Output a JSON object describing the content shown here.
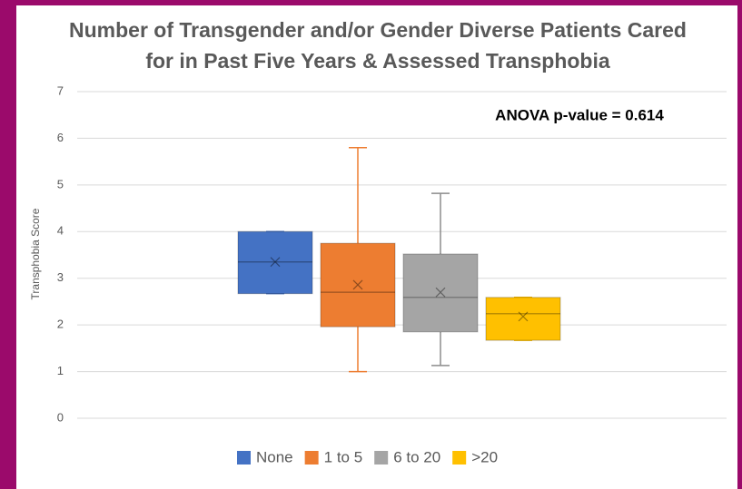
{
  "chart_data": {
    "type": "box",
    "title": [
      "Number of Transgender and/or Gender Diverse Patients Cared",
      "for in Past Five Years & Assessed Transphobia"
    ],
    "y_label": "Transphobia Score",
    "annotation": "ANOVA p-value = 0.614",
    "ylim": [
      0,
      7
    ],
    "yticks": [
      0,
      1,
      2,
      3,
      4,
      5,
      6,
      7
    ],
    "grid": true,
    "legend": "bottom",
    "series": [
      {
        "name": "None",
        "color": "#4472c4",
        "min": 2.67,
        "q1": 2.67,
        "median": 3.35,
        "q3": 4.0,
        "max": 4.0,
        "mean": 3.35
      },
      {
        "name": "1 to 5",
        "color": "#ed7d31",
        "min": 1.0,
        "q1": 1.96,
        "median": 2.7,
        "q3": 3.75,
        "max": 5.8,
        "mean": 2.86
      },
      {
        "name": "6 to 20",
        "color": "#a5a5a5",
        "min": 1.13,
        "q1": 1.85,
        "median": 2.59,
        "q3": 3.52,
        "max": 4.82,
        "mean": 2.7
      },
      {
        "name": ">20",
        "color": "#ffc000",
        "min": 1.67,
        "q1": 1.67,
        "median": 2.24,
        "q3": 2.59,
        "max": 2.59,
        "mean": 2.18
      }
    ]
  }
}
